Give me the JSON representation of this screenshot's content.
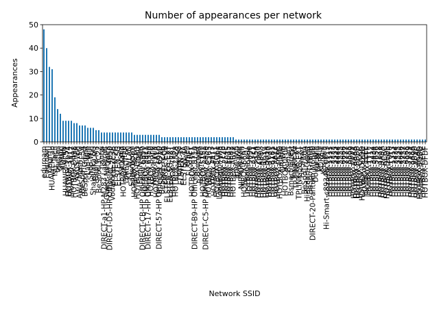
{
  "chart_data": {
    "type": "bar",
    "title": "Number of appearances per network",
    "xlabel": "Network SSID",
    "ylabel": "Appearances",
    "ylim": [
      0,
      50
    ],
    "yticks": [
      0,
      10,
      20,
      30,
      40,
      50
    ],
    "grid": false,
    "legend": "none",
    "bar_color": "#1f77b4",
    "values": [
      48,
      40,
      32,
      31,
      19,
      14,
      12,
      9,
      9,
      9,
      9,
      8,
      8,
      7,
      7,
      7,
      6,
      6,
      6,
      5,
      5,
      4,
      4,
      4,
      4,
      4,
      4,
      4,
      4,
      4,
      4,
      4,
      4,
      3,
      3,
      3,
      3,
      3,
      3,
      3,
      3,
      3,
      3,
      2,
      2,
      2,
      2,
      2,
      2,
      2,
      2,
      2,
      2,
      2,
      2,
      2,
      2,
      2,
      2,
      2,
      2,
      2,
      2,
      2,
      2,
      2,
      2,
      2,
      2,
      2,
      1,
      1,
      1,
      1,
      1,
      1,
      1,
      1,
      1,
      1,
      1,
      1,
      1,
      1,
      1,
      1,
      1,
      1,
      1,
      1,
      1,
      1,
      1,
      1,
      1,
      1,
      1,
      1,
      1,
      1,
      1,
      1,
      1,
      1,
      1,
      1,
      1,
      1,
      1,
      1,
      1,
      1,
      1,
      1,
      1,
      1,
      1,
      1,
      1,
      1,
      1,
      1,
      1,
      1,
      1,
      1,
      1,
      1,
      1,
      1,
      1,
      1,
      1,
      1,
      1,
      1,
      1,
      1,
      1,
      1
    ],
    "categories": [
      "eduroam",
      "Eduroam",
      "ChunYu",
      "HUAWEI-Lab",
      "Isu_Tech",
      "beetles",
      "Gongzi",
      "ADMIN",
      "HUAWEI-9C5F",
      "HOTBOX-1074",
      "HUAWEI-3A17",
      "HOTBOX-D498",
      "ASUS-Wifi",
      "AWA_Mesh_5G",
      "BeSpoT-2F5A",
      "BeSpoT-Guest",
      "Lab-Wifi",
      "Shop-Wifi",
      "Shakalaka 5G",
      "Bepro-M3",
      "BeSpot-3C22",
      "hantai",
      "DIRECT-a1-HP M283 LaserJet",
      "Guest-Network",
      "DIRECT-D5-HP OfficeJet 4650",
      "Vodafone-2E3B",
      "ELSTEN-2G",
      "ELSTEN-5G",
      "Kanopla",
      "HOTBOX-4450",
      "DIRECT-5F",
      "KT_WLAN",
      "Sagemcom",
      "HOTBOX-B2B1",
      "HOTBOX-DEAD",
      "Family-Net",
      "DIRECT-CB-HP OfficeJet 6950",
      "HOTBOX-9911",
      "DIRECT-17-HP OfficeJet 6950",
      "HOTBOX-63F0",
      "Neuva-Wifi",
      "HOTBOX-1A1A",
      "DIRECT-57-HP OfficeJet 6950",
      "BeSpoT-12AB",
      "DIRECT-C0",
      "ELSTEN-2G-EXT",
      "ELSTEN-5G-EXT",
      "HOTBOX-7781",
      "HOTBOX-2828",
      "Home-5G",
      "ELSTEN-3F",
      "ELSTEN-4A",
      "Ameli",
      "FLSTAFF",
      "HOTBOX-E1E1",
      "DIRECT-B9-HP OfficeJet 8710",
      "Bsomart",
      "Bosch-Wifi",
      "HOTBOX-5151",
      "DIRECT-C5-HP OfficeJet 6950",
      "HOTBOX-C5C5",
      "Pixel_5473",
      "HOTBOX-FA11",
      "HOTBOX-8C61",
      "Lookingfor-Wifi",
      "HOTBOX-7778",
      "HOTBOX-2F4E",
      "HOTBOX-E015",
      "HOTBOX-4EB2",
      "HOTBOX-A812",
      "Free-Wifi",
      "Repeater",
      "NIPPON-Wifi",
      "HOTBOX-66A7",
      "n-iPhone ماجد",
      "HOTBOX-9090",
      "HOTBOX-3321",
      "HOTBOX-5154",
      "HOTBOX-2D20",
      "HOTBOX-A8D3",
      "HOTBOX-1C1C",
      "HOTBOX-BD14",
      "HOTBOX-7070",
      "HOTBOX-B1B1",
      "HOTBOX-9A12",
      "HOTBOX-6E6E",
      "HOTBOX-4D4D",
      "DR-Wifi",
      "HOTBOX-0F0F",
      "Bsmart",
      "Bsmart-Guest",
      "Tenda-5G",
      "TP-LINK-EXT",
      "TPLINK-5G-EXT",
      "Hi-Smart",
      "BeSpoT-7A0A",
      "Hi-Smart-Guest",
      "BeSpoT-7B0B",
      "DIRECT-20-Pantum M6500",
      "Dolby-Wifi",
      "DP-Wifi",
      "KORE-T",
      "Kos-Wifi",
      "Hi-Smart-c89346c0013",
      "HOTBOX-1111",
      "HOTBOX-2222",
      "HOTBOX-3333",
      "HOTBOX-4444",
      "HOTBOX-5555",
      "HOTBOX-6666",
      "HOTBOX-7777",
      "HOTBOX-8888",
      "HOTBOX-9999",
      "HOTBOX-AAAA",
      "HOTBOX-BBBB",
      "HOTBOX-CCCC",
      "HOTBOX-DDDD",
      "HOTBOX-EEEE",
      "HOTBOX-FFFF",
      "HOTBOX-1212",
      "HOTBOX-3434",
      "HOTBOX-5656",
      "HOTBOX-7878",
      "HOTBOX-9A9A",
      "HOTBOX-BCBC",
      "HOTBOX-DEDE",
      "HOTBOX-F0F0",
      "HOTBOX-1313",
      "HOTBOX-2424",
      "HOTBOX-3535",
      "HOTBOX-4646",
      "HOTBOX-5757",
      "HOTBOX-6868",
      "HOTBOX-7979",
      "HOTBOX-8A8A",
      "HOTBOX-9B9B",
      "HOTBOX-ACAC",
      "HOTBOX-BDBD",
      "HOTBOX-CECE",
      "HOTBOX-DFDF"
    ]
  }
}
